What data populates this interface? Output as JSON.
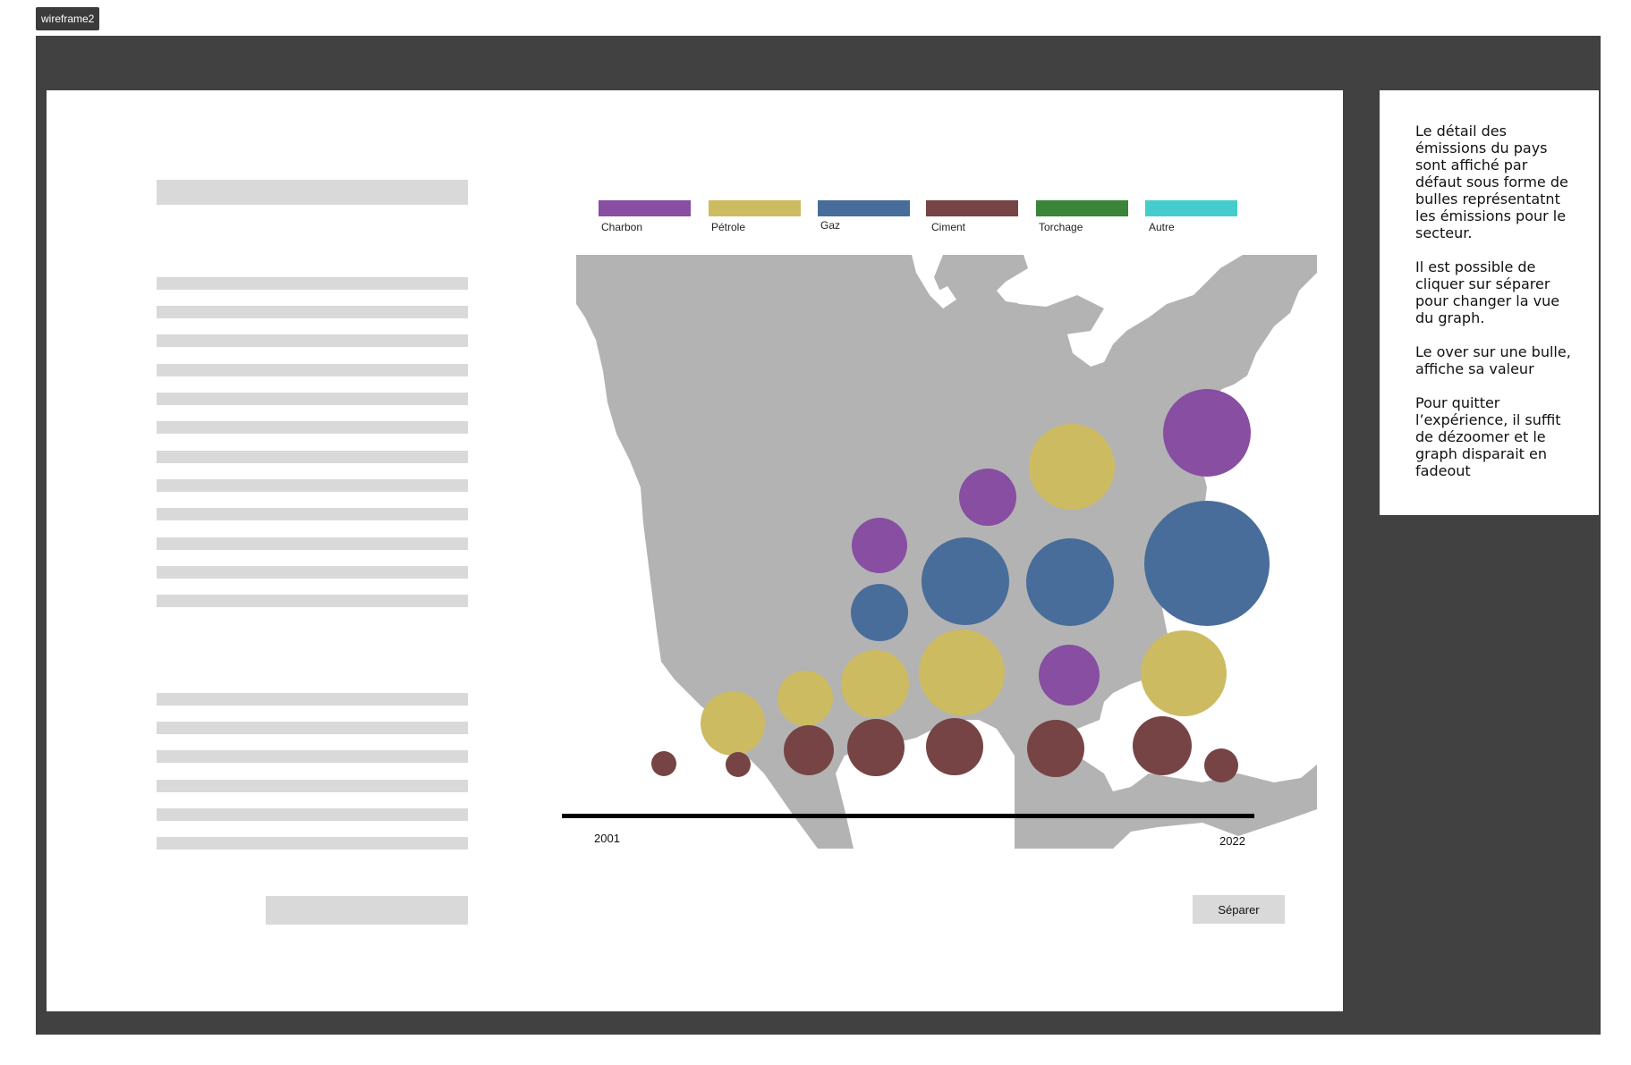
{
  "frame_label": "wireframe2",
  "legend": [
    {
      "label": "Charbon",
      "color": "#874ea2"
    },
    {
      "label": "Pétrole",
      "color": "#cdbb62"
    },
    {
      "label": "Gaz",
      "color": "#486d9a"
    },
    {
      "label": "Ciment",
      "color": "#764444"
    },
    {
      "label": "Torchage",
      "color": "#3b853b"
    },
    {
      "label": "Autre",
      "color": "#46cccc"
    }
  ],
  "axis": {
    "start_label": "2001",
    "end_label": "2022"
  },
  "separate_button": "Séparer",
  "side_note": {
    "p1": "Le détail des émissions du pays sont affiché par défaut sous forme de bulles représentatnt les émissions pour le secteur.",
    "p2": "Il est possible de cliquer sur séparer pour changer la vue du graph.",
    "p3": "Le over sur une bulle, affiche sa valeur",
    "p4": "Pour quitter l’expérience, il suffit de dézoomer et le graph disparait en fadeout"
  },
  "colors": {
    "frame": "#414141",
    "placeholder": "#d9d9d9",
    "map": "#b3b3b3"
  }
}
